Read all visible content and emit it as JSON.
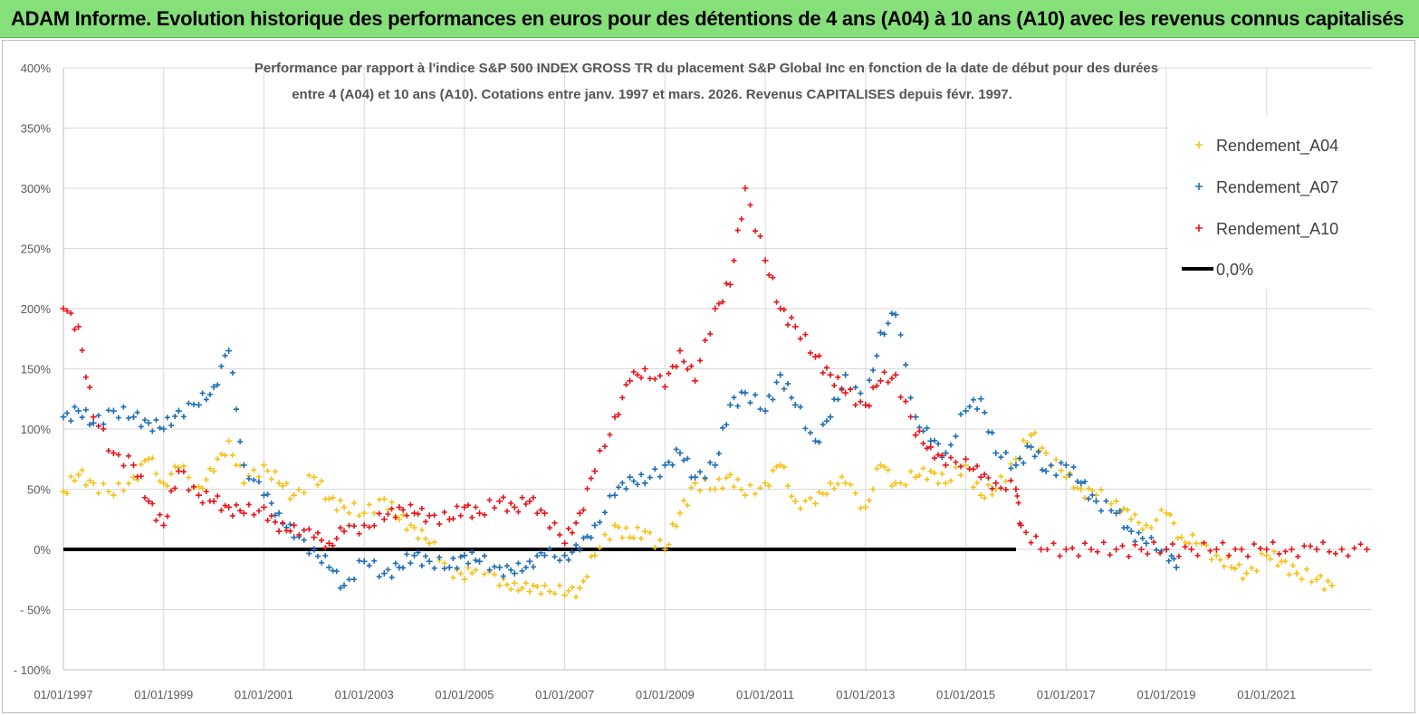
{
  "banner": {
    "title": "ADAM Informe. Evolution historique des performances en euros pour des détentions de 4 ans (A04) à 10 ans (A10) avec les revenus connus capitalisés"
  },
  "colors": {
    "banner": "#86e07a",
    "a04": "#f5c21b",
    "a07": "#1f6fb5",
    "a10": "#e8161b",
    "zero": "#000000",
    "grid": "#d9d9d9"
  },
  "chart_data": {
    "type": "scatter",
    "title_line1": "Performance par rapport à l'indice S&P 500 INDEX GROSS TR  du placement S&P Global Inc en fonction de la date de début pour des durées",
    "title_line2": "entre 4 (A04) et 10 ans (A10). Cotations entre janv. 1997 et mars. 2026. Revenus CAPITALISES depuis févr. 1997.",
    "xlabel": "",
    "ylabel": "",
    "xlim": [
      1997.0,
      2023.1
    ],
    "ylim": [
      -100,
      400
    ],
    "y_ticks": [
      "- 100%",
      "- 50%",
      "0%",
      "50%",
      "100%",
      "150%",
      "200%",
      "250%",
      "300%",
      "350%",
      "400%"
    ],
    "y_tick_values": [
      -100,
      -50,
      0,
      50,
      100,
      150,
      200,
      250,
      300,
      350,
      400
    ],
    "x_ticks": [
      "01/01/1997",
      "01/01/1999",
      "01/01/2001",
      "01/01/2003",
      "01/01/2005",
      "01/01/2007",
      "01/01/2009",
      "01/01/2011",
      "01/01/2013",
      "01/01/2015",
      "01/01/2017",
      "01/01/2019",
      "01/01/2021"
    ],
    "x_tick_values": [
      1997,
      1999,
      2001,
      2003,
      2005,
      2007,
      2009,
      2011,
      2013,
      2015,
      2017,
      2019,
      2021
    ],
    "grid": true,
    "legend_position": "top-right",
    "series": [
      {
        "name": "Rendement_A04",
        "color_key": "a04",
        "x": [
          1997.0,
          1997.3,
          1997.6,
          1998.0,
          1998.4,
          1998.7,
          1999.0,
          1999.3,
          1999.7,
          2000.0,
          2000.3,
          2000.6,
          2001.0,
          2001.3,
          2001.6,
          2002.0,
          2002.3,
          2002.6,
          2003.0,
          2003.4,
          2003.7,
          2004.0,
          2004.3,
          2004.7,
          2005.0,
          2005.3,
          2005.7,
          2006.0,
          2006.3,
          2006.6,
          2007.0,
          2007.3,
          2007.6,
          2008.0,
          2008.3,
          2008.6,
          2009.0,
          2009.3,
          2009.6,
          2010.0,
          2010.3,
          2010.6,
          2011.0,
          2011.3,
          2011.6,
          2012.0,
          2012.3,
          2012.6,
          2013.0,
          2013.3,
          2013.6,
          2014.0,
          2014.3,
          2014.6,
          2015.0,
          2015.3,
          2015.6,
          2016.0,
          2016.3,
          2016.6,
          2017.0,
          2017.3,
          2017.6,
          2018.0,
          2018.3,
          2018.6,
          2019.0,
          2019.3,
          2019.6,
          2020.0,
          2020.3,
          2020.6,
          2021.0,
          2021.3,
          2021.6,
          2022.0,
          2022.3
        ],
        "y": [
          48,
          62,
          55,
          45,
          60,
          75,
          55,
          68,
          52,
          65,
          90,
          55,
          70,
          55,
          45,
          60,
          42,
          35,
          30,
          42,
          25,
          18,
          5,
          -15,
          -25,
          -10,
          -30,
          -28,
          -35,
          -30,
          -38,
          -32,
          -5,
          20,
          10,
          15,
          0,
          30,
          55,
          50,
          62,
          45,
          55,
          70,
          40,
          38,
          55,
          55,
          35,
          70,
          55,
          60,
          65,
          55,
          70,
          45,
          50,
          75,
          95,
          80,
          60,
          50,
          45,
          40,
          25,
          20,
          30,
          10,
          5,
          -5,
          -15,
          -20,
          -5,
          -10,
          -20,
          -25,
          -30
        ]
      },
      {
        "name": "Rendement_A07",
        "color_key": "a07",
        "x": [
          1997.0,
          1997.3,
          1997.6,
          1998.0,
          1998.4,
          1998.7,
          1999.0,
          1999.3,
          1999.7,
          2000.0,
          2000.3,
          2000.6,
          2001.0,
          2001.3,
          2001.6,
          2002.0,
          2002.3,
          2002.6,
          2003.0,
          2003.4,
          2003.7,
          2004.0,
          2004.3,
          2004.7,
          2005.0,
          2005.3,
          2005.7,
          2006.0,
          2006.3,
          2006.6,
          2007.0,
          2007.3,
          2007.6,
          2008.0,
          2008.3,
          2008.6,
          2009.0,
          2009.3,
          2009.6,
          2010.0,
          2010.3,
          2010.6,
          2011.0,
          2011.3,
          2011.6,
          2012.0,
          2012.3,
          2012.6,
          2013.0,
          2013.3,
          2013.6,
          2014.0,
          2014.3,
          2014.6,
          2015.0,
          2015.3,
          2015.6,
          2016.0,
          2016.3,
          2016.6,
          2017.0,
          2017.3,
          2017.6,
          2018.0,
          2018.3,
          2018.6,
          2019.0,
          2019.2
        ],
        "y": [
          110,
          115,
          105,
          115,
          110,
          105,
          100,
          115,
          120,
          135,
          165,
          70,
          45,
          30,
          10,
          0,
          -15,
          -30,
          -10,
          -20,
          -15,
          -5,
          -10,
          -15,
          -5,
          -10,
          -15,
          -20,
          -10,
          -5,
          -5,
          0,
          20,
          45,
          60,
          55,
          70,
          80,
          60,
          70,
          120,
          130,
          115,
          145,
          120,
          90,
          110,
          145,
          120,
          180,
          195,
          110,
          90,
          80,
          115,
          125,
          80,
          70,
          85,
          65,
          70,
          55,
          40,
          30,
          15,
          5,
          0,
          -15
        ]
      },
      {
        "name": "Rendement_A10",
        "color_key": "a10",
        "x": [
          1997.0,
          1997.3,
          1997.6,
          1998.0,
          1998.4,
          1998.7,
          1999.0,
          1999.3,
          1999.7,
          2000.0,
          2000.3,
          2000.6,
          2001.0,
          2001.3,
          2001.6,
          2002.0,
          2002.3,
          2002.6,
          2003.0,
          2003.4,
          2003.7,
          2004.0,
          2004.3,
          2004.7,
          2005.0,
          2005.3,
          2005.7,
          2006.0,
          2006.3,
          2006.6,
          2007.0,
          2007.3,
          2007.6,
          2008.0,
          2008.3,
          2008.6,
          2009.0,
          2009.3,
          2009.6,
          2010.0,
          2010.3,
          2010.6,
          2011.0,
          2011.3,
          2011.6,
          2012.0,
          2012.3,
          2012.6,
          2013.0,
          2013.3,
          2013.6,
          2014.0,
          2014.3,
          2014.6,
          2015.0,
          2015.3,
          2015.6,
          2016.0,
          2016.1,
          2016.5,
          2017.0,
          2017.5,
          2018.0,
          2018.5,
          2019.0,
          2019.5,
          2020.0,
          2020.5,
          2021.0,
          2021.5,
          2022.0,
          2022.5,
          2023.0
        ],
        "y": [
          200,
          185,
          110,
          80,
          70,
          40,
          20,
          65,
          45,
          40,
          35,
          30,
          35,
          15,
          20,
          10,
          5,
          15,
          20,
          25,
          35,
          30,
          28,
          25,
          35,
          30,
          40,
          35,
          40,
          30,
          5,
          30,
          65,
          110,
          140,
          150,
          135,
          165,
          140,
          200,
          220,
          300,
          240,
          200,
          185,
          160,
          145,
          130,
          120,
          140,
          145,
          95,
          85,
          70,
          75,
          60,
          55,
          50,
          20,
          0,
          0,
          0,
          0,
          0,
          0,
          0,
          0,
          0,
          0,
          0,
          0,
          0,
          0
        ]
      }
    ],
    "reference_line": {
      "name": "0,0%",
      "value": 0,
      "x_end": 2016.0,
      "color_key": "zero"
    }
  }
}
